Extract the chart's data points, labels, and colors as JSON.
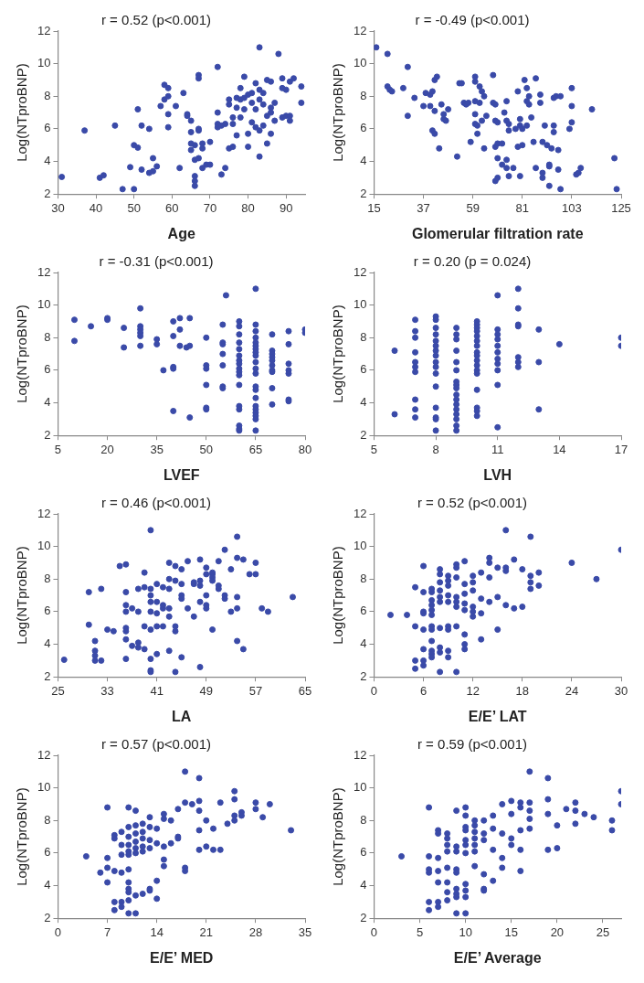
{
  "chart_data": [
    {
      "type": "scatter",
      "title": "r = 0.52 (p<0.001)",
      "xlabel": "Age",
      "ylabel": "Log(NTproBNP)",
      "color": "#3a4aa8",
      "marker": "circle",
      "grid": false,
      "xlim": [
        30,
        95
      ],
      "xticks": [
        30,
        40,
        50,
        60,
        70,
        80,
        90
      ],
      "ylim": [
        2,
        12
      ],
      "yticks": [
        2,
        4,
        6,
        8,
        10,
        12
      ],
      "x": [
        31,
        37,
        41,
        42,
        45,
        47,
        49,
        50,
        50,
        51,
        51,
        52,
        52,
        54,
        54,
        55,
        55,
        56,
        57,
        58,
        58,
        59,
        59,
        59,
        59,
        61,
        62,
        63,
        64,
        64,
        65,
        65,
        65,
        65,
        66,
        66,
        66,
        66,
        66,
        67,
        67,
        67,
        67,
        67,
        68,
        68,
        68,
        69,
        70,
        70,
        72,
        72,
        72,
        72,
        73,
        73,
        74,
        74,
        75,
        75,
        75,
        76,
        76,
        76,
        77,
        77,
        77,
        78,
        78,
        78,
        79,
        79,
        79,
        80,
        80,
        80,
        81,
        81,
        81,
        82,
        82,
        82,
        83,
        83,
        83,
        83,
        83,
        84,
        84,
        84,
        85,
        85,
        85,
        86,
        86,
        86,
        86,
        87,
        87,
        88,
        89,
        89,
        89,
        90,
        90,
        91,
        91,
        91,
        92,
        94,
        94
      ],
      "values": [
        3.05,
        5.9,
        3.0,
        3.15,
        6.2,
        2.3,
        3.65,
        5.0,
        2.3,
        4.85,
        7.2,
        3.5,
        6.2,
        6.0,
        3.3,
        4.2,
        3.4,
        3.7,
        7.4,
        8.7,
        7.8,
        8.5,
        8.0,
        6.9,
        6.1,
        7.4,
        3.6,
        8.2,
        6.9,
        6.8,
        5.8,
        5.1,
        4.7,
        6.5,
        3.1,
        2.8,
        2.5,
        5.0,
        4.1,
        9.3,
        9.1,
        4.2,
        5.9,
        6.0,
        3.6,
        4.8,
        5.1,
        3.8,
        3.8,
        5.2,
        9.8,
        6.3,
        7.0,
        6.1,
        6.2,
        3.2,
        3.6,
        6.3,
        4.8,
        7.5,
        7.8,
        4.9,
        6.3,
        6.7,
        7.9,
        7.3,
        5.6,
        8.5,
        7.8,
        6.7,
        9.2,
        7.9,
        7.2,
        8.1,
        5.7,
        4.9,
        8.2,
        7.6,
        6.4,
        8.8,
        7.2,
        6.1,
        11.0,
        8.4,
        4.3,
        5.9,
        7.8,
        8.2,
        6.2,
        7.5,
        9.0,
        6.8,
        5.1,
        5.7,
        7.3,
        7.0,
        8.9,
        7.6,
        6.5,
        10.6,
        9.1,
        8.5,
        6.7,
        6.8,
        8.4,
        6.5,
        6.8,
        8.9,
        9.1,
        8.6,
        7.6
      ]
    },
    {
      "type": "scatter",
      "title": "r = -0.49 (p<0.001)",
      "xlabel": "Glomerular filtration rate",
      "ylabel": "Log(NTproBNP)",
      "color": "#3a4aa8",
      "marker": "circle",
      "grid": false,
      "xlim": [
        15,
        125
      ],
      "xticks": [
        15,
        37,
        59,
        81,
        103,
        125
      ],
      "ylim": [
        2,
        12
      ],
      "yticks": [
        2,
        4,
        6,
        8,
        10,
        12
      ],
      "x": [
        16,
        21,
        21,
        23,
        22,
        28,
        30,
        30,
        33,
        38,
        37,
        40,
        40,
        41,
        41,
        42,
        42,
        43,
        42,
        44,
        45,
        46,
        46,
        47,
        48,
        52,
        53,
        54,
        55,
        56,
        57,
        58,
        60,
        60,
        60,
        60,
        60,
        61,
        61,
        62,
        62,
        63,
        63,
        64,
        64,
        65,
        68,
        68,
        69,
        69,
        69,
        69,
        70,
        70,
        70,
        70,
        72,
        72,
        74,
        73,
        74,
        74,
        74,
        75,
        75,
        75,
        77,
        78,
        79,
        79,
        80,
        80,
        80,
        81,
        81,
        82,
        83,
        83,
        83,
        84,
        84,
        85,
        86,
        87,
        87,
        89,
        89,
        90,
        90,
        90,
        91,
        92,
        93,
        93,
        93,
        94,
        95,
        95,
        95,
        96,
        97,
        97,
        98,
        98,
        102,
        103,
        103,
        103,
        105,
        107,
        106,
        112,
        122,
        123
      ],
      "values": [
        11.0,
        10.6,
        8.6,
        8.3,
        8.4,
        8.5,
        9.8,
        6.8,
        7.9,
        8.2,
        7.4,
        8.1,
        7.4,
        8.3,
        5.9,
        5.7,
        9.0,
        9.2,
        7.1,
        4.8,
        7.5,
        6.9,
        6.6,
        6.5,
        7.2,
        4.3,
        8.8,
        8.8,
        7.6,
        7.5,
        7.6,
        5.2,
        9.2,
        8.9,
        7.7,
        6.3,
        6.9,
        6.2,
        5.7,
        7.6,
        8.6,
        6.5,
        8.3,
        8.0,
        4.8,
        6.8,
        9.3,
        7.6,
        7.5,
        6.5,
        4.9,
        2.8,
        3.0,
        4.2,
        5.1,
        6.4,
        5.1,
        3.8,
        7.7,
        7.0,
        6.5,
        4.1,
        3.6,
        6.3,
        3.1,
        5.9,
        3.6,
        6.0,
        4.9,
        8.3,
        6.2,
        3.1,
        6.6,
        5.0,
        6.0,
        9.0,
        8.5,
        6.2,
        7.7,
        7.5,
        8.0,
        6.7,
        5.2,
        9.1,
        3.6,
        7.6,
        8.1,
        3.0,
        3.3,
        5.2,
        6.2,
        5.0,
        3.7,
        2.5,
        3.8,
        4.8,
        6.2,
        5.8,
        7.9,
        8.0,
        3.5,
        4.7,
        8.0,
        2.3,
        6.0,
        8.5,
        6.4,
        7.4,
        3.2,
        3.6,
        3.3,
        7.2,
        4.2,
        2.3
      ]
    },
    {
      "type": "scatter",
      "title": "r = -0.31 (p<0.001)",
      "xlabel": "LVEF",
      "ylabel": "Log(NTproBNP)",
      "color": "#3a4aa8",
      "marker": "circle",
      "grid": false,
      "xlim": [
        5,
        80
      ],
      "xticks": [
        5,
        20,
        35,
        50,
        65,
        80
      ],
      "ylim": [
        2,
        12
      ],
      "yticks": [
        2,
        4,
        6,
        8,
        10,
        12
      ],
      "x": [
        10,
        10,
        15,
        20,
        20,
        25,
        25,
        30,
        30,
        30,
        30,
        30,
        30,
        35,
        35,
        37,
        40,
        40,
        40,
        40,
        40,
        42,
        42,
        42,
        44,
        45,
        45,
        45,
        50,
        50,
        50,
        50,
        50,
        50,
        56,
        55,
        55,
        55,
        55,
        55,
        55,
        55,
        60,
        60,
        60,
        60,
        60,
        60,
        60,
        60,
        60,
        60,
        60,
        60,
        60,
        60,
        60,
        60,
        60,
        65,
        65,
        65,
        65,
        65,
        65,
        65,
        65,
        65,
        65,
        65,
        65,
        65,
        65,
        65,
        65,
        65,
        65,
        65,
        65,
        65,
        70,
        70,
        70,
        70,
        70,
        70,
        70,
        70,
        70,
        70,
        75,
        75,
        75,
        75,
        75,
        75,
        75,
        80,
        80
      ],
      "values": [
        9.1,
        7.8,
        8.7,
        9.2,
        9.1,
        8.6,
        7.4,
        9.8,
        8.7,
        8.5,
        8.3,
        8.1,
        7.5,
        7.9,
        7.6,
        6.0,
        9.0,
        8.1,
        6.2,
        6.1,
        3.5,
        9.2,
        8.5,
        7.5,
        7.4,
        9.2,
        7.5,
        3.1,
        8.0,
        6.3,
        6.1,
        5.1,
        3.7,
        3.6,
        10.6,
        8.8,
        7.7,
        7.6,
        7.0,
        6.3,
        5.0,
        4.9,
        9.0,
        8.7,
        8.2,
        7.7,
        7.3,
        6.9,
        6.6,
        6.4,
        6.1,
        5.9,
        5.7,
        5.1,
        3.8,
        3.6,
        2.6,
        2.4,
        2.3,
        11.0,
        8.8,
        8.4,
        8.0,
        7.7,
        7.5,
        7.3,
        7.1,
        6.9,
        6.5,
        6.1,
        5.8,
        5.0,
        4.8,
        4.3,
        3.8,
        3.6,
        3.4,
        3.2,
        3.0,
        2.3,
        8.2,
        7.2,
        7.0,
        6.8,
        6.6,
        6.3,
        6.0,
        5.9,
        4.9,
        3.9,
        8.4,
        7.6,
        6.4,
        6.0,
        5.8,
        4.2,
        4.1,
        8.5,
        8.3
      ]
    },
    {
      "type": "scatter",
      "title": "r = 0.20 (p = 0.024)",
      "xlabel": "LVH",
      "ylabel": "Log(NTproBNP)",
      "color": "#3a4aa8",
      "marker": "circle",
      "grid": false,
      "xlim": [
        5,
        17
      ],
      "xticks": [
        5,
        8,
        11,
        14,
        17
      ],
      "ylim": [
        2,
        12
      ],
      "yticks": [
        2,
        4,
        6,
        8,
        10,
        12
      ],
      "x": [
        6,
        6,
        7,
        7,
        7,
        7,
        7,
        7,
        7,
        7,
        7,
        7,
        8,
        8,
        8,
        8,
        8,
        8,
        8,
        8,
        8,
        8,
        8,
        8,
        8,
        8,
        8,
        8,
        9,
        9,
        9,
        9,
        9,
        9,
        9,
        9,
        9,
        9,
        9,
        9,
        9,
        9,
        9,
        9,
        9,
        10,
        10,
        10,
        10,
        10,
        10,
        10,
        10,
        10,
        10,
        10,
        10,
        10,
        10,
        10,
        10,
        10,
        11,
        11,
        11,
        11,
        11,
        11,
        11,
        11,
        11,
        11,
        11,
        12,
        12,
        12,
        12,
        12,
        12,
        12,
        13,
        13,
        13,
        14,
        17,
        17
      ],
      "values": [
        7.2,
        3.3,
        9.1,
        8.4,
        8.0,
        7.1,
        6.5,
        6.2,
        5.9,
        4.2,
        3.6,
        3.1,
        9.3,
        9.1,
        8.6,
        8.2,
        7.8,
        7.5,
        7.2,
        6.9,
        6.5,
        6.2,
        5.8,
        5.0,
        3.7,
        3.1,
        3.0,
        2.3,
        8.6,
        8.2,
        7.9,
        7.2,
        6.5,
        6.0,
        5.3,
        5.1,
        4.9,
        4.5,
        4.2,
        3.9,
        3.6,
        3.3,
        3.0,
        2.6,
        2.3,
        9.0,
        8.8,
        8.6,
        8.4,
        8.1,
        7.8,
        7.5,
        7.1,
        6.9,
        6.6,
        6.3,
        6.0,
        5.8,
        4.8,
        3.7,
        3.5,
        3.2,
        10.6,
        8.5,
        8.2,
        7.9,
        7.5,
        7.1,
        6.7,
        6.4,
        6.0,
        5.1,
        2.5,
        11.0,
        9.8,
        8.8,
        8.7,
        6.8,
        6.5,
        6.2,
        8.5,
        6.5,
        3.6,
        7.6,
        8.0,
        7.5
      ]
    },
    {
      "type": "scatter",
      "title": "r = 0.46 (p<0.001)",
      "xlabel": "LA",
      "ylabel": "Log(NTproBNP)",
      "color": "#3a4aa8",
      "marker": "circle",
      "grid": false,
      "xlim": [
        25,
        65
      ],
      "xticks": [
        25,
        33,
        41,
        49,
        57,
        65
      ],
      "ylim": [
        2,
        12
      ],
      "yticks": [
        2,
        4,
        6,
        8,
        10,
        12
      ],
      "x": [
        26,
        30,
        30,
        31,
        31,
        31,
        31,
        32,
        32,
        33,
        34,
        35,
        36,
        36,
        36,
        36,
        36,
        36,
        36,
        36,
        37,
        37,
        38,
        38,
        38,
        38,
        39,
        39,
        39,
        39,
        40,
        40,
        40,
        40,
        40,
        40,
        40,
        40,
        40,
        41,
        41,
        41,
        41,
        41,
        42,
        42,
        42,
        42,
        43,
        43,
        43,
        43,
        43,
        43,
        44,
        44,
        44,
        44,
        44,
        45,
        45,
        45,
        45,
        45,
        46,
        46,
        47,
        47,
        47,
        48,
        48,
        48,
        48,
        48,
        49,
        49,
        49,
        49,
        49,
        50,
        50,
        50,
        50,
        50,
        51,
        51,
        51,
        52,
        52,
        52,
        53,
        53,
        54,
        54,
        54,
        54,
        54,
        55,
        55,
        56,
        57,
        57,
        58,
        59,
        63
      ],
      "values": [
        3.05,
        7.2,
        5.2,
        4.2,
        3.6,
        3.3,
        3.0,
        7.4,
        3.0,
        4.9,
        4.8,
        8.8,
        8.9,
        7.2,
        6.4,
        6.0,
        5.0,
        4.8,
        4.3,
        3.1,
        6.2,
        3.9,
        4.1,
        3.8,
        7.4,
        6.0,
        8.4,
        7.5,
        5.1,
        3.7,
        11.0,
        7.4,
        7.0,
        6.6,
        6.0,
        4.9,
        3.1,
        2.4,
        2.3,
        7.7,
        6.6,
        5.9,
        5.1,
        3.4,
        6.2,
        6.4,
        5.1,
        7.5,
        9.0,
        8.0,
        7.4,
        6.2,
        5.7,
        3.6,
        8.8,
        7.9,
        5.1,
        4.8,
        2.3,
        8.6,
        7.7,
        7.0,
        6.8,
        3.2,
        9.1,
        6.2,
        7.8,
        7.7,
        5.7,
        9.2,
        7.9,
        7.6,
        6.6,
        2.6,
        8.7,
        8.3,
        7.0,
        6.4,
        6.2,
        8.3,
        8.4,
        8.1,
        7.9,
        4.9,
        9.1,
        7.6,
        7.4,
        9.8,
        7.0,
        6.8,
        8.6,
        6.0,
        10.6,
        9.3,
        6.9,
        6.2,
        4.2,
        9.2,
        3.7,
        8.3,
        9.0,
        8.3,
        6.2,
        6.0,
        6.9
      ]
    },
    {
      "type": "scatter",
      "title": "r = 0.52 (p<0.001)",
      "xlabel": "E/E’ LAT",
      "ylabel": "Log(NTproBNP)",
      "color": "#3a4aa8",
      "marker": "circle",
      "grid": false,
      "xlim": [
        0,
        30
      ],
      "xticks": [
        0,
        6,
        12,
        18,
        24,
        30
      ],
      "ylim": [
        2,
        12
      ],
      "yticks": [
        2,
        4,
        6,
        8,
        10,
        12
      ],
      "x": [
        2,
        4,
        5,
        5,
        5,
        5,
        6,
        6,
        6,
        6,
        6,
        6,
        6,
        6,
        7,
        7,
        7,
        7,
        7,
        7,
        7,
        7,
        7,
        7,
        7,
        7,
        8,
        8,
        8,
        8,
        8,
        8,
        8,
        8,
        8,
        8,
        9,
        9,
        9,
        9,
        9,
        9,
        9,
        9,
        9,
        10,
        10,
        10,
        10,
        10,
        10,
        10,
        10,
        11,
        11,
        11,
        11,
        11,
        11,
        11,
        11,
        12,
        12,
        12,
        12,
        12,
        12,
        13,
        13,
        13,
        13,
        14,
        14,
        14,
        14,
        15,
        15,
        15,
        16,
        16,
        16,
        16,
        17,
        17,
        18,
        18,
        19,
        19,
        19,
        19,
        20,
        20,
        24,
        27,
        30
      ],
      "values": [
        5.8,
        5.8,
        7.5,
        5.1,
        3.0,
        2.5,
        8.8,
        7.2,
        6.0,
        5.9,
        4.9,
        3.7,
        3.0,
        2.7,
        7.4,
        7.2,
        6.7,
        6.4,
        6.1,
        5.8,
        5.1,
        4.9,
        4.2,
        3.6,
        3.4,
        3.2,
        8.6,
        8.3,
        7.8,
        7.3,
        6.9,
        6.6,
        5.0,
        3.8,
        3.5,
        2.3,
        8.2,
        7.9,
        7.6,
        7.0,
        6.6,
        5.1,
        4.9,
        3.6,
        3.2,
        8.9,
        8.7,
        8.1,
        6.9,
        6.6,
        6.3,
        5.1,
        2.3,
        9.1,
        7.7,
        7.1,
        6.5,
        6.1,
        4.6,
        4.0,
        3.7,
        8.2,
        7.8,
        7.3,
        6.3,
        6.0,
        5.7,
        8.4,
        6.8,
        5.9,
        4.3,
        9.3,
        9.0,
        8.1,
        6.6,
        8.7,
        6.9,
        4.9,
        11.0,
        8.7,
        8.5,
        6.4,
        9.2,
        6.2,
        8.6,
        6.3,
        10.6,
        8.2,
        7.8,
        7.4,
        8.4,
        7.6,
        9.0,
        8.0,
        9.8
      ]
    },
    {
      "type": "scatter",
      "title": "r = 0.57 (p<0.001)",
      "xlabel": "E/E’ MED",
      "ylabel": "Log(NTproBNP)",
      "color": "#3a4aa8",
      "marker": "circle",
      "grid": false,
      "xlim": [
        0,
        35
      ],
      "xticks": [
        0,
        7,
        14,
        21,
        28,
        35
      ],
      "ylim": [
        2,
        12
      ],
      "yticks": [
        2,
        4,
        6,
        8,
        10,
        12
      ],
      "x": [
        4,
        6,
        7,
        7,
        7,
        7,
        8,
        8,
        8,
        8,
        8,
        9,
        9,
        9,
        9,
        9,
        9,
        10,
        10,
        10,
        10,
        10,
        10,
        10,
        10,
        10,
        10,
        10,
        10,
        11,
        11,
        11,
        11,
        11,
        11,
        11,
        11,
        12,
        12,
        12,
        12,
        12,
        12,
        13,
        13,
        13,
        13,
        13,
        13,
        14,
        14,
        14,
        14,
        15,
        15,
        15,
        15,
        15,
        16,
        16,
        17,
        17,
        17,
        18,
        18,
        18,
        18,
        19,
        20,
        20,
        20,
        20,
        20,
        21,
        21,
        22,
        22,
        23,
        23,
        24,
        25,
        25,
        25,
        25,
        26,
        26,
        28,
        28,
        29,
        30,
        33
      ],
      "values": [
        5.8,
        4.8,
        8.8,
        5.7,
        5.1,
        4.2,
        7.1,
        6.9,
        4.9,
        3.0,
        2.5,
        7.3,
        6.5,
        5.9,
        4.8,
        3.0,
        2.7,
        8.8,
        7.6,
        7.0,
        6.5,
        6.1,
        5.9,
        5.0,
        4.2,
        3.8,
        3.6,
        3.1,
        2.3,
        8.6,
        7.7,
        7.2,
        6.7,
        6.3,
        6.0,
        3.4,
        2.3,
        7.8,
        7.3,
        6.9,
        6.4,
        6.1,
        3.5,
        8.2,
        7.6,
        6.8,
        6.3,
        3.8,
        3.7,
        7.5,
        6.6,
        4.3,
        3.2,
        8.4,
        8.1,
        6.4,
        5.6,
        5.2,
        8.0,
        6.6,
        8.7,
        7.0,
        6.9,
        11.0,
        9.1,
        5.1,
        4.9,
        9.0,
        10.6,
        9.2,
        8.6,
        7.4,
        6.2,
        8.0,
        6.4,
        7.5,
        6.2,
        9.1,
        6.2,
        7.8,
        9.8,
        9.3,
        8.3,
        8.0,
        8.5,
        8.3,
        9.1,
        8.7,
        8.2,
        9.0,
        7.4
      ]
    },
    {
      "type": "scatter",
      "title": "r = 0.59 (p<0.001)",
      "xlabel": "E/E’ Average",
      "ylabel": "Log(NTproBNP)",
      "color": "#3a4aa8",
      "marker": "circle",
      "grid": false,
      "xlim": [
        0,
        27
      ],
      "xticks": [
        0,
        5,
        10,
        15,
        20,
        25
      ],
      "ylim": [
        2,
        12
      ],
      "yticks": [
        2,
        4,
        6,
        8,
        10,
        12
      ],
      "x": [
        3,
        6,
        6,
        6,
        6,
        6,
        6,
        7,
        7,
        7,
        7,
        7,
        7,
        7,
        8,
        8,
        8,
        8,
        8,
        8,
        8,
        8,
        9,
        9,
        9,
        9,
        9,
        9,
        9,
        9,
        9,
        10,
        10,
        10,
        10,
        10,
        10,
        10,
        10,
        10,
        10,
        10,
        11,
        11,
        11,
        11,
        11,
        11,
        11,
        12,
        12,
        12,
        12,
        12,
        12,
        13,
        13,
        13,
        13,
        14,
        14,
        14,
        14,
        15,
        15,
        15,
        15,
        16,
        16,
        16,
        16,
        16,
        17,
        17,
        17,
        17,
        17,
        19,
        19,
        19,
        19,
        20,
        20,
        21,
        22,
        22,
        22,
        23,
        24,
        26,
        26,
        27,
        27
      ],
      "values": [
        5.8,
        8.8,
        5.8,
        5.0,
        4.8,
        3.0,
        2.5,
        7.4,
        7.2,
        5.7,
        4.9,
        4.2,
        3.0,
        2.7,
        7.2,
        6.9,
        6.5,
        6.1,
        5.1,
        4.2,
        3.6,
        3.1,
        8.6,
        6.4,
        6.1,
        5.0,
        4.8,
        3.8,
        3.5,
        3.3,
        2.3,
        8.8,
        8.3,
        7.6,
        7.4,
        6.8,
        6.5,
        6.0,
        4.1,
        3.7,
        3.3,
        2.3,
        8.0,
        7.7,
        7.3,
        6.9,
        6.5,
        6.1,
        5.2,
        8.0,
        7.2,
        6.8,
        4.7,
        3.8,
        3.7,
        8.3,
        7.5,
        6.2,
        4.3,
        9.0,
        7.2,
        5.7,
        5.1,
        9.2,
        8.4,
        6.9,
        6.5,
        9.1,
        8.8,
        7.4,
        6.2,
        4.9,
        11.0,
        9.1,
        8.6,
        8.1,
        7.5,
        10.6,
        9.3,
        8.4,
        6.2,
        7.7,
        6.3,
        8.7,
        9.1,
        8.6,
        7.8,
        8.4,
        8.2,
        8.0,
        7.4,
        9.8,
        9.0
      ]
    }
  ]
}
